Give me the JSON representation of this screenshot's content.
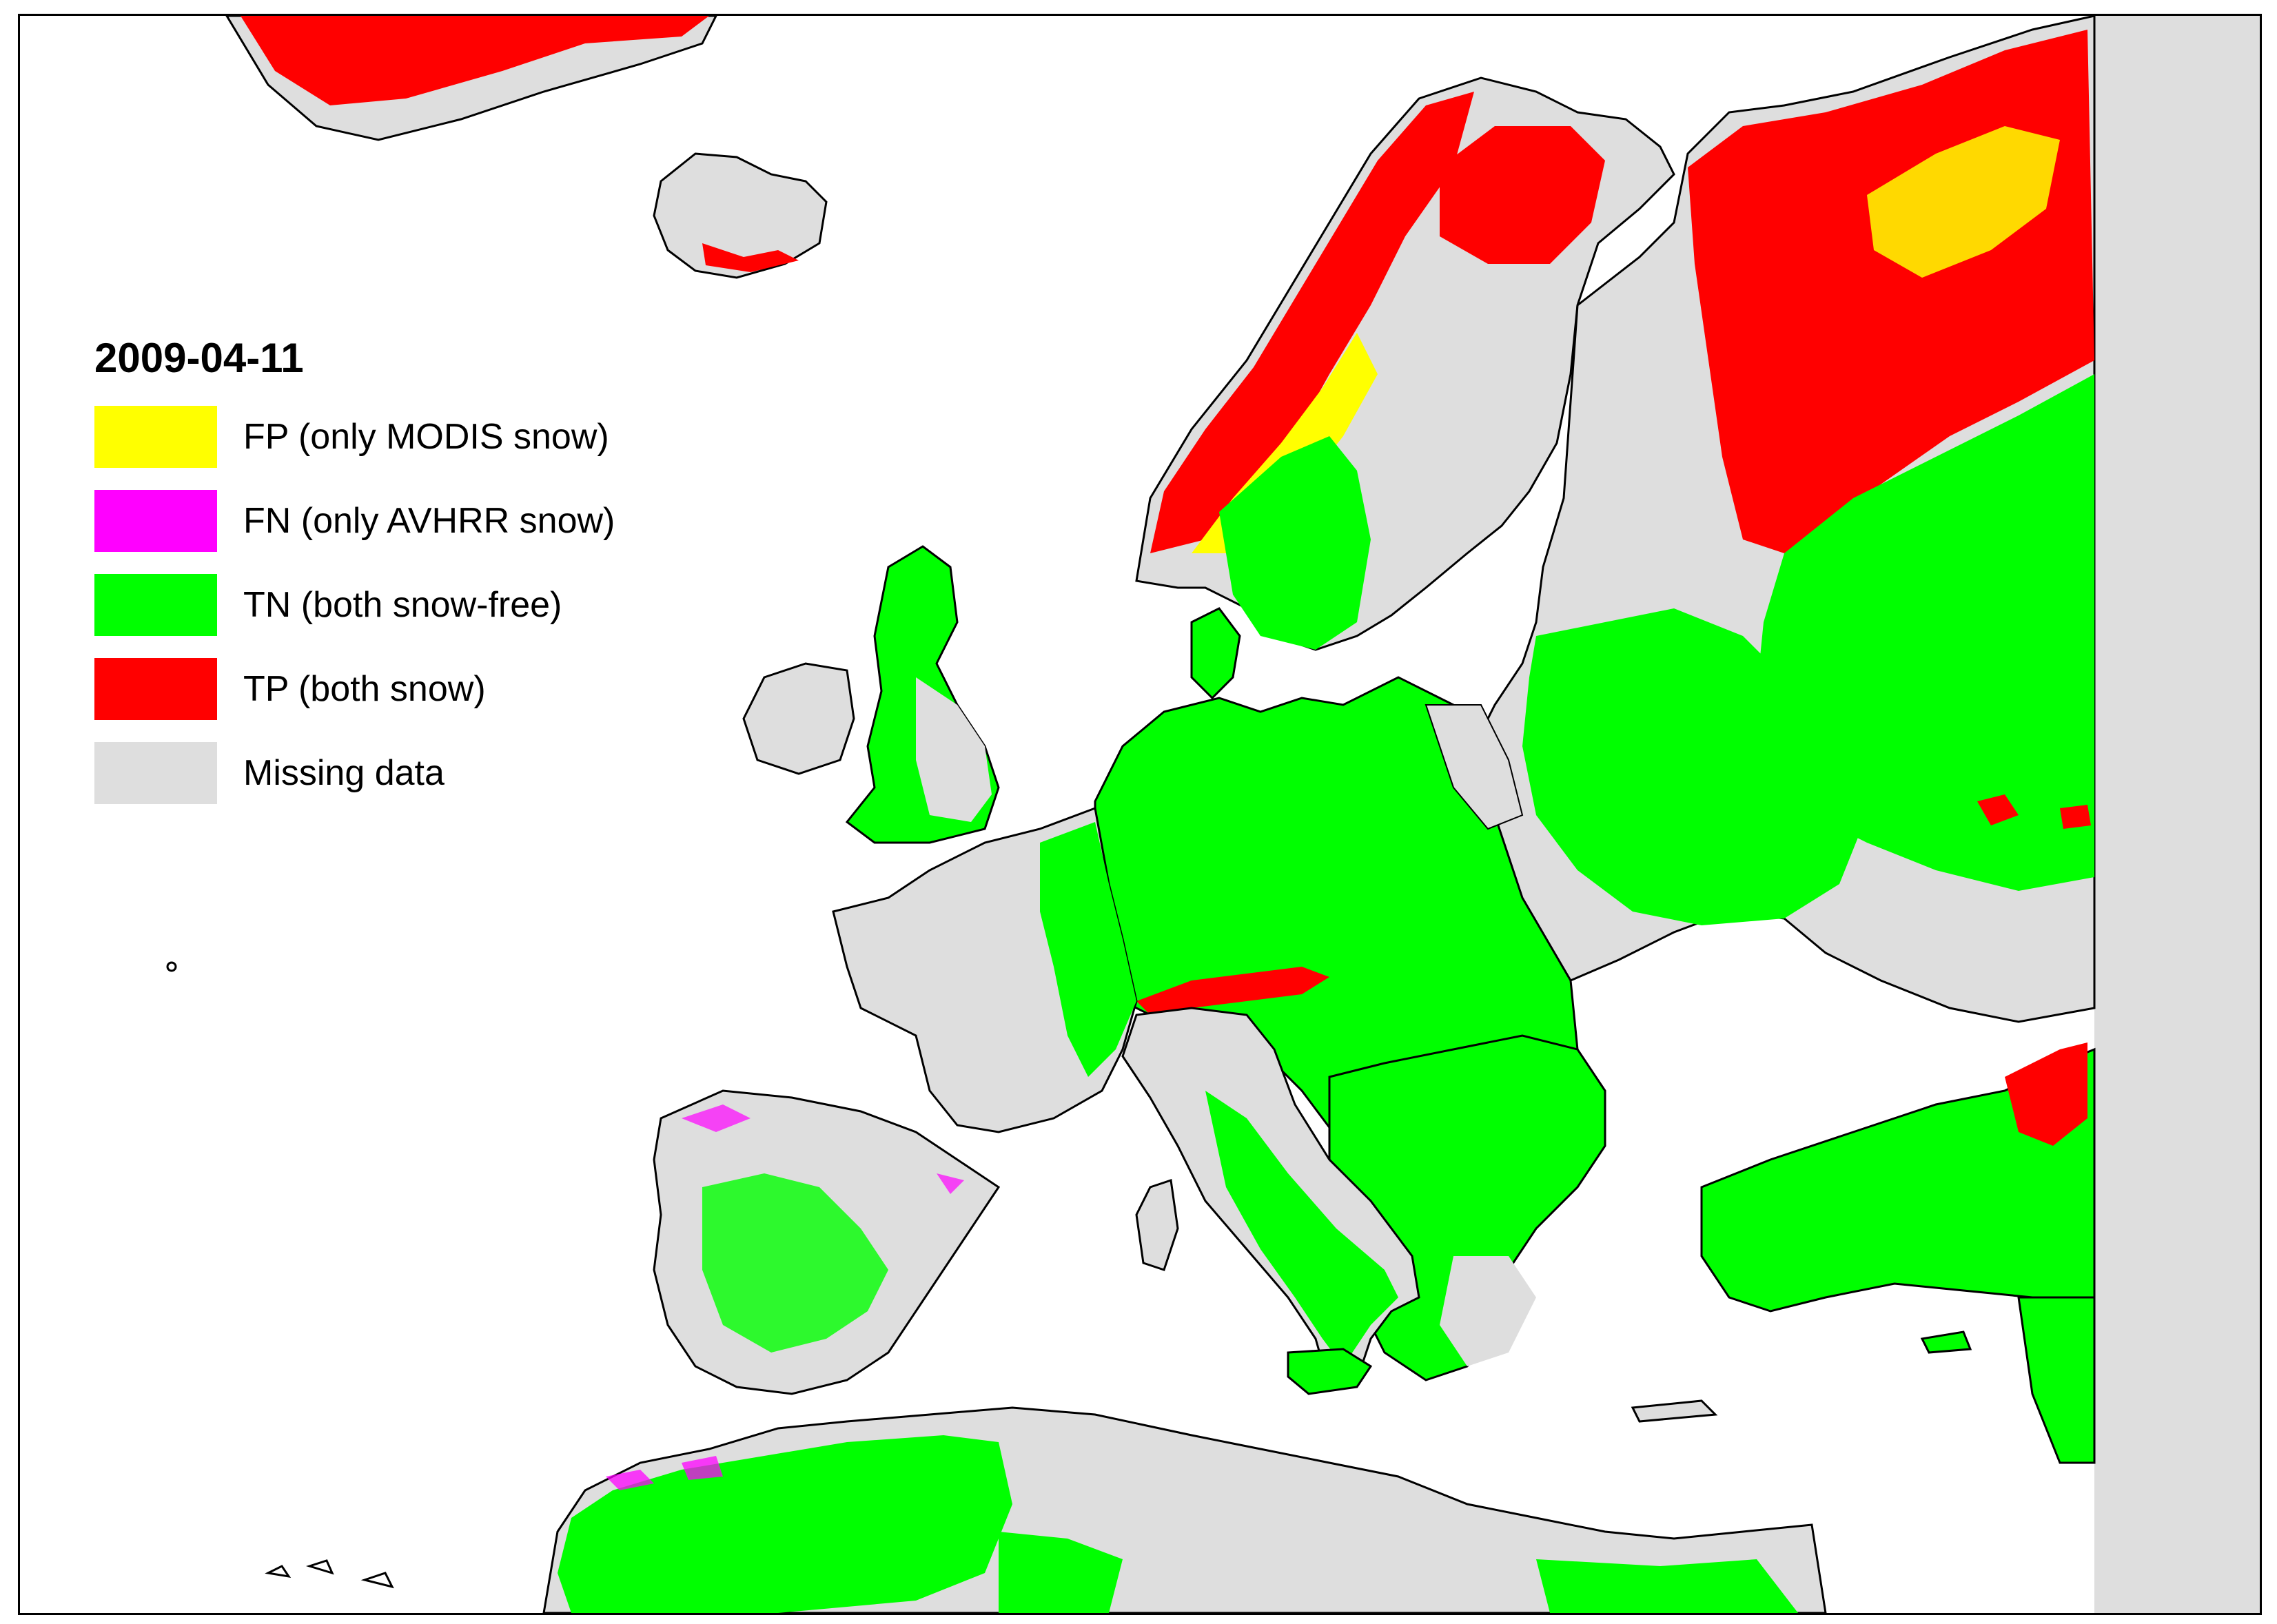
{
  "title": "2009-04-11",
  "legend": [
    {
      "label": "FP (only MODIS snow)",
      "color": "#FFFF00",
      "class": "fp"
    },
    {
      "label": "FN (only AVHRR snow)",
      "color": "#FF00FF",
      "class": "fn"
    },
    {
      "label": "TN (both snow-free)",
      "color": "#00FF00",
      "class": "tn"
    },
    {
      "label": "TP (both snow)",
      "color": "#FF0000",
      "class": "tp"
    },
    {
      "label": "Missing data",
      "color": "#DEDEDE",
      "class": "missing"
    }
  ]
}
